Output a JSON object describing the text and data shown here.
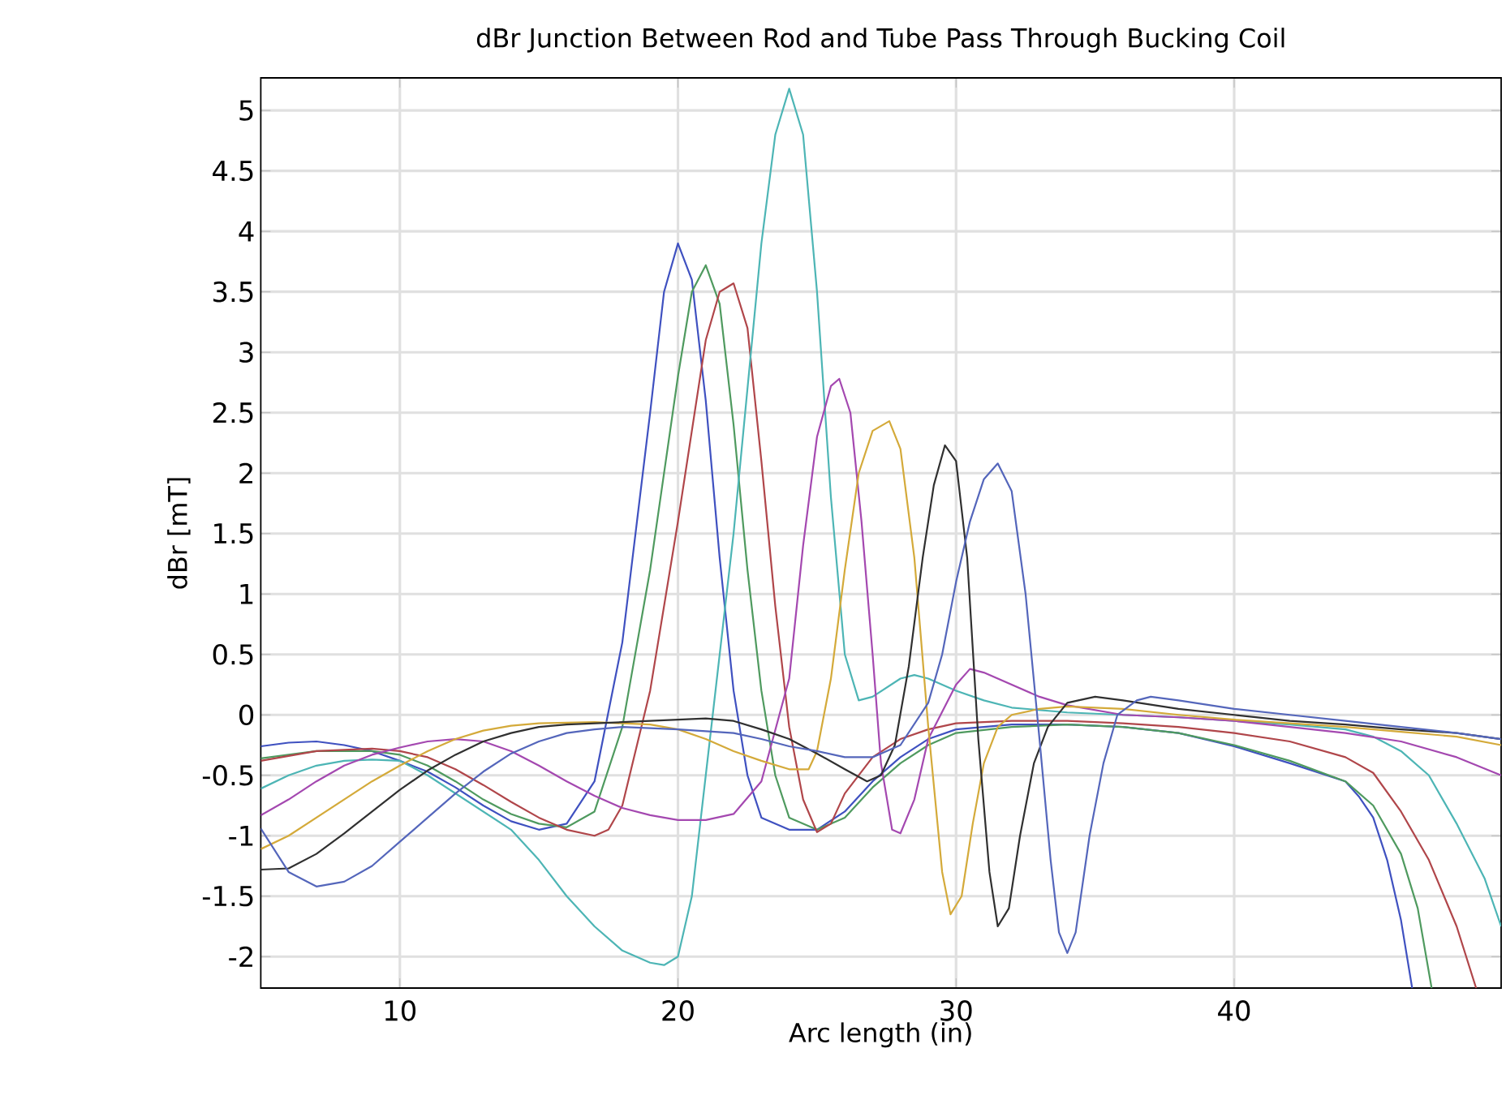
{
  "chart_data": {
    "type": "line",
    "title": "dBr Junction Between Rod and Tube Pass Through Bucking Coil",
    "xlabel": "Arc length (in)",
    "ylabel": "dBr [mT]",
    "xlim": [
      5,
      49.6
    ],
    "ylim": [
      -2.26,
      5.27
    ],
    "xticks": [
      10,
      20,
      30,
      40
    ],
    "yticks": [
      -2,
      -1.5,
      -1,
      -0.5,
      0,
      0.5,
      1,
      1.5,
      2,
      2.5,
      3,
      3.5,
      4,
      4.5,
      5
    ],
    "grid": true,
    "legend": false,
    "marker": "none",
    "line_style": "solid",
    "series": [
      {
        "color": "#3f51c0",
        "x": [
          5,
          6,
          7,
          8,
          9,
          10,
          11,
          12,
          13,
          14,
          15,
          16,
          17,
          18,
          19,
          19.5,
          20,
          20.5,
          21,
          21.5,
          22,
          22.5,
          23,
          24,
          25,
          26,
          27,
          28,
          29,
          30,
          32,
          34,
          36,
          38,
          40,
          42,
          44,
          44.5,
          45,
          45.5,
          46,
          46.4
        ],
        "values": [
          -0.26,
          -0.23,
          -0.22,
          -0.25,
          -0.3,
          -0.38,
          -0.47,
          -0.6,
          -0.75,
          -0.88,
          -0.95,
          -0.9,
          -0.55,
          0.6,
          2.5,
          3.5,
          3.9,
          3.6,
          2.6,
          1.3,
          0.2,
          -0.5,
          -0.85,
          -0.95,
          -0.95,
          -0.8,
          -0.55,
          -0.35,
          -0.2,
          -0.12,
          -0.08,
          -0.08,
          -0.1,
          -0.15,
          -0.26,
          -0.4,
          -0.55,
          -0.68,
          -0.85,
          -1.2,
          -1.7,
          -2.26
        ]
      },
      {
        "color": "#4f9a5f",
        "x": [
          5,
          7,
          9,
          10,
          11,
          12,
          13,
          14,
          15,
          16,
          17,
          18,
          19,
          20,
          20.5,
          21,
          21.5,
          22,
          22.5,
          23,
          23.5,
          24,
          25,
          26,
          27,
          28,
          29,
          30,
          32,
          34,
          36,
          38,
          40,
          42,
          44,
          45,
          46,
          46.6,
          47.1
        ],
        "values": [
          -0.36,
          -0.3,
          -0.3,
          -0.33,
          -0.42,
          -0.55,
          -0.7,
          -0.82,
          -0.9,
          -0.93,
          -0.8,
          -0.1,
          1.2,
          2.8,
          3.5,
          3.72,
          3.4,
          2.4,
          1.2,
          0.2,
          -0.5,
          -0.85,
          -0.95,
          -0.85,
          -0.6,
          -0.4,
          -0.25,
          -0.15,
          -0.1,
          -0.08,
          -0.1,
          -0.15,
          -0.25,
          -0.38,
          -0.55,
          -0.75,
          -1.15,
          -1.6,
          -2.26
        ]
      },
      {
        "color": "#b0464a",
        "x": [
          5,
          7,
          9,
          10,
          11,
          12,
          13,
          14,
          15,
          16,
          17,
          17.5,
          18,
          19,
          20,
          21,
          21.5,
          22,
          22.5,
          23,
          23.5,
          24,
          24.5,
          25,
          25.5,
          26,
          27,
          28,
          29,
          30,
          32,
          34,
          36,
          38,
          40,
          42,
          44,
          45,
          46,
          47,
          48,
          48.7
        ],
        "values": [
          -0.38,
          -0.3,
          -0.28,
          -0.3,
          -0.35,
          -0.45,
          -0.58,
          -0.72,
          -0.85,
          -0.95,
          -1.0,
          -0.95,
          -0.75,
          0.2,
          1.6,
          3.1,
          3.5,
          3.57,
          3.2,
          2.1,
          0.9,
          -0.1,
          -0.7,
          -0.97,
          -0.9,
          -0.65,
          -0.35,
          -0.2,
          -0.12,
          -0.07,
          -0.05,
          -0.05,
          -0.07,
          -0.1,
          -0.15,
          -0.22,
          -0.35,
          -0.48,
          -0.8,
          -1.2,
          -1.75,
          -2.26
        ]
      },
      {
        "color": "#4db5b5",
        "x": [
          5,
          6,
          7,
          8,
          9,
          10,
          11,
          12,
          13,
          14,
          15,
          16,
          17,
          18,
          19,
          19.5,
          20,
          20.5,
          21,
          22,
          23,
          23.5,
          24,
          24.5,
          25,
          25.5,
          26,
          26.5,
          27,
          28,
          28.5,
          29,
          30,
          31,
          32,
          34,
          36,
          38,
          40,
          42,
          44,
          45,
          46,
          47,
          48,
          49,
          49.6
        ],
        "values": [
          -0.61,
          -0.5,
          -0.42,
          -0.38,
          -0.37,
          -0.38,
          -0.5,
          -0.65,
          -0.8,
          -0.95,
          -1.2,
          -1.5,
          -1.75,
          -1.95,
          -2.05,
          -2.07,
          -2.0,
          -1.5,
          -0.5,
          1.5,
          3.9,
          4.8,
          5.18,
          4.8,
          3.5,
          1.8,
          0.5,
          0.12,
          0.15,
          0.3,
          0.33,
          0.3,
          0.2,
          0.12,
          0.06,
          0.02,
          0,
          -0.02,
          -0.05,
          -0.08,
          -0.12,
          -0.18,
          -0.3,
          -0.5,
          -0.9,
          -1.35,
          -1.75
        ]
      },
      {
        "color": "#a448b0",
        "x": [
          5,
          6,
          7,
          8,
          9,
          10,
          11,
          12,
          13,
          14,
          15,
          16,
          17,
          18,
          19,
          20,
          21,
          22,
          23,
          24,
          24.5,
          25,
          25.5,
          25.8,
          26.2,
          26.6,
          27,
          27.3,
          27.7,
          28,
          28.5,
          29,
          30,
          30.5,
          31,
          32,
          33,
          34,
          36,
          38,
          40,
          42,
          44,
          46,
          48,
          49.6
        ],
        "values": [
          -0.83,
          -0.7,
          -0.55,
          -0.42,
          -0.33,
          -0.27,
          -0.22,
          -0.2,
          -0.22,
          -0.3,
          -0.42,
          -0.55,
          -0.67,
          -0.77,
          -0.83,
          -0.87,
          -0.87,
          -0.82,
          -0.55,
          0.3,
          1.4,
          2.3,
          2.72,
          2.78,
          2.5,
          1.6,
          0.5,
          -0.4,
          -0.95,
          -0.98,
          -0.7,
          -0.2,
          0.25,
          0.38,
          0.35,
          0.25,
          0.15,
          0.08,
          0,
          -0.02,
          -0.05,
          -0.1,
          -0.15,
          -0.22,
          -0.35,
          -0.5
        ]
      },
      {
        "color": "#d4aa3a",
        "x": [
          5,
          6,
          7,
          8,
          9,
          10,
          11,
          12,
          13,
          14,
          15,
          17,
          19,
          20,
          21,
          22,
          23,
          24,
          24.7,
          25,
          25.5,
          26,
          26.5,
          27,
          27.6,
          28,
          28.5,
          29,
          29.5,
          29.8,
          30.2,
          30.6,
          31,
          31.5,
          32,
          33,
          34,
          36,
          38,
          40,
          42,
          44,
          46,
          48,
          49.6
        ],
        "values": [
          -1.11,
          -1.0,
          -0.85,
          -0.7,
          -0.55,
          -0.42,
          -0.3,
          -0.2,
          -0.13,
          -0.09,
          -0.07,
          -0.06,
          -0.08,
          -0.12,
          -0.2,
          -0.3,
          -0.38,
          -0.45,
          -0.45,
          -0.3,
          0.3,
          1.2,
          2.0,
          2.35,
          2.43,
          2.2,
          1.3,
          -0.1,
          -1.3,
          -1.65,
          -1.5,
          -0.9,
          -0.4,
          -0.1,
          0,
          0.05,
          0.07,
          0.05,
          0,
          -0.04,
          -0.07,
          -0.1,
          -0.14,
          -0.18,
          -0.25
        ]
      },
      {
        "color": "#303030",
        "x": [
          5,
          6,
          7,
          8,
          9,
          10,
          11,
          12,
          13,
          14,
          15,
          16,
          18,
          20,
          21,
          22,
          23,
          24,
          25,
          26,
          26.8,
          27.3,
          27.8,
          28.3,
          28.8,
          29.2,
          29.6,
          30,
          30.4,
          30.8,
          31.2,
          31.5,
          31.9,
          32.3,
          32.8,
          33.3,
          34,
          35,
          36,
          38,
          40,
          42,
          44,
          46,
          48,
          49.6
        ],
        "values": [
          -1.28,
          -1.27,
          -1.15,
          -0.98,
          -0.8,
          -0.62,
          -0.46,
          -0.33,
          -0.22,
          -0.15,
          -0.1,
          -0.08,
          -0.06,
          -0.04,
          -0.03,
          -0.05,
          -0.12,
          -0.2,
          -0.32,
          -0.45,
          -0.55,
          -0.5,
          -0.25,
          0.4,
          1.3,
          1.9,
          2.23,
          2.1,
          1.3,
          -0.2,
          -1.3,
          -1.75,
          -1.6,
          -1.0,
          -0.4,
          -0.1,
          0.1,
          0.15,
          0.12,
          0.05,
          0,
          -0.05,
          -0.08,
          -0.12,
          -0.15,
          -0.2
        ]
      },
      {
        "color": "#5466bb",
        "x": [
          5,
          6,
          7,
          8,
          9,
          10,
          11,
          12,
          13,
          14,
          15,
          16,
          17,
          18,
          20,
          22,
          23,
          24,
          25,
          26,
          27,
          28,
          29,
          29.5,
          30,
          30.5,
          31,
          31.5,
          32,
          32.5,
          33,
          33.4,
          33.7,
          34,
          34.3,
          34.8,
          35.3,
          35.8,
          36.5,
          37,
          38,
          40,
          42,
          44,
          46,
          48,
          49.6
        ],
        "values": [
          -0.94,
          -1.3,
          -1.42,
          -1.38,
          -1.25,
          -1.05,
          -0.85,
          -0.65,
          -0.47,
          -0.32,
          -0.22,
          -0.15,
          -0.12,
          -0.1,
          -0.12,
          -0.15,
          -0.2,
          -0.26,
          -0.3,
          -0.35,
          -0.35,
          -0.25,
          0.1,
          0.5,
          1.1,
          1.6,
          1.95,
          2.08,
          1.85,
          1.0,
          -0.2,
          -1.2,
          -1.8,
          -1.97,
          -1.8,
          -1.0,
          -0.4,
          0,
          0.12,
          0.15,
          0.12,
          0.05,
          0,
          -0.05,
          -0.1,
          -0.15,
          -0.2
        ]
      }
    ]
  }
}
